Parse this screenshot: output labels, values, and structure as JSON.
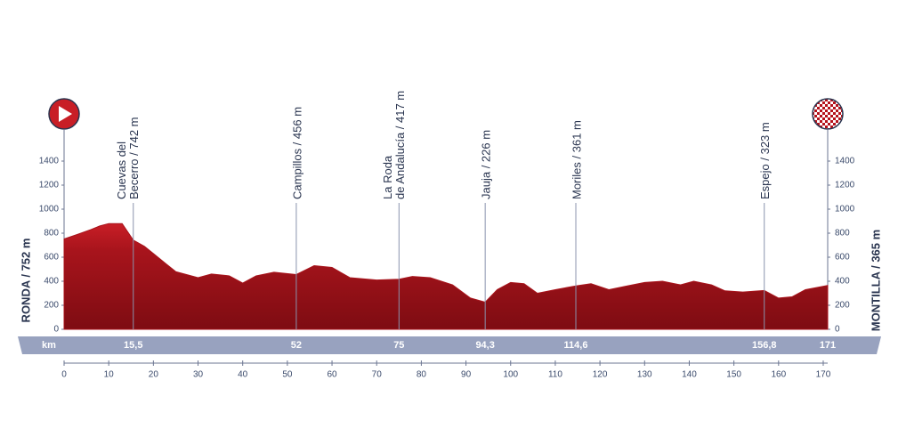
{
  "chart_data": {
    "type": "area",
    "color": "#a8141c",
    "x": [
      0,
      3,
      6,
      8,
      10,
      13,
      15.5,
      18,
      20,
      23,
      25,
      30,
      33,
      37,
      40,
      43,
      47,
      52,
      56,
      60,
      64,
      70,
      75,
      78,
      82,
      87,
      91,
      94.3,
      97,
      100,
      103,
      106,
      110,
      114.6,
      118,
      122,
      126,
      130,
      134,
      138,
      141,
      145,
      148,
      152,
      156.8,
      160,
      163,
      166,
      171
    ],
    "values": [
      752,
      790,
      830,
      860,
      880,
      880,
      742,
      690,
      630,
      540,
      480,
      430,
      460,
      445,
      385,
      445,
      475,
      456,
      530,
      515,
      430,
      410,
      417,
      440,
      430,
      370,
      260,
      226,
      330,
      390,
      380,
      300,
      330,
      361,
      380,
      330,
      360,
      390,
      400,
      370,
      400,
      370,
      320,
      310,
      323,
      260,
      270,
      330,
      365
    ],
    "xlim": [
      0,
      171
    ],
    "ylim": [
      0,
      1400
    ],
    "xticks": [
      0,
      10,
      20,
      30,
      40,
      50,
      60,
      70,
      80,
      90,
      100,
      110,
      120,
      130,
      140,
      150,
      160,
      170
    ],
    "yticks": [
      0,
      200,
      400,
      600,
      800,
      1000,
      1200,
      1400
    ],
    "km_label": "km",
    "start_label": "RONDA / 752 m",
    "finish_label": "MONTILLA / 365 m",
    "finish_km": 171,
    "waypoints": [
      {
        "km": {
          "value": 15.5,
          "label": "15,5"
        },
        "lines": [
          "Cuevas del",
          "Becerro / 742 m"
        ]
      },
      {
        "km": 52,
        "lines": [
          "Campillos / 456 m"
        ]
      },
      {
        "km": 75,
        "lines": [
          "La Roda",
          "de Andalucía / 417 m"
        ]
      },
      {
        "km": {
          "value": 94.3,
          "label": "94,3"
        },
        "lines": [
          "Jauja / 226 m"
        ]
      },
      {
        "km": {
          "value": 114.6,
          "label": "114,6"
        },
        "lines": [
          "Moriles / 361 m"
        ]
      },
      {
        "km": {
          "value": 156.8,
          "label": "156,8"
        },
        "lines": [
          "Espejo / 323 m"
        ]
      }
    ]
  }
}
